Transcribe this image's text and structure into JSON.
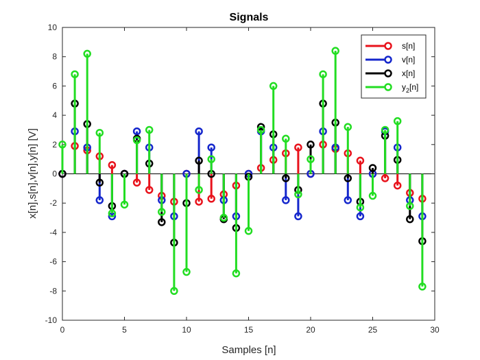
{
  "chart_data": {
    "type": "stem",
    "title": "Signals",
    "xlabel": "Samples [n]",
    "ylabel": "x[n],s[n],v[n],y[n] [V]",
    "xlim": [
      0,
      30
    ],
    "ylim": [
      -10,
      10
    ],
    "xticks": [
      0,
      5,
      10,
      15,
      20,
      25,
      30
    ],
    "yticks": [
      -10,
      -8,
      -6,
      -4,
      -2,
      0,
      2,
      4,
      6,
      8,
      10
    ],
    "grid": false,
    "legend_position": "top-right",
    "x": [
      0,
      1,
      2,
      3,
      4,
      5,
      6,
      7,
      8,
      9,
      10,
      11,
      12,
      13,
      14,
      15,
      16,
      17,
      18,
      19,
      20,
      21,
      22,
      23,
      24,
      25,
      26,
      27,
      28,
      29
    ],
    "series": [
      {
        "name": "s[n]",
        "legend": "s[n]",
        "color": "#e8121b",
        "values": [
          0,
          1.9,
          1.6,
          1.2,
          0.6,
          0,
          -0.6,
          -1.1,
          -1.5,
          -1.9,
          0,
          -1.9,
          -1.7,
          -1.4,
          -0.8,
          0,
          0.4,
          0.95,
          1.4,
          1.8,
          0,
          2.0,
          1.7,
          1.4,
          0.9,
          0,
          -0.3,
          -0.8,
          -1.3,
          -1.7
        ]
      },
      {
        "name": "v[n]",
        "legend": "v[n]",
        "color": "#1426cc",
        "values": [
          0,
          2.9,
          1.8,
          -1.8,
          -2.9,
          0,
          2.9,
          1.8,
          -1.8,
          -2.9,
          0,
          2.9,
          1.8,
          -1.8,
          -2.9,
          0,
          2.9,
          1.8,
          -1.8,
          -2.9,
          0,
          2.9,
          1.8,
          -1.8,
          -2.9,
          0,
          2.9,
          1.8,
          -1.8,
          -2.9
        ]
      },
      {
        "name": "x[n]",
        "legend": "x[n]",
        "color": "#000000",
        "values": [
          0,
          4.8,
          3.4,
          -0.6,
          -2.2,
          0,
          2.4,
          0.7,
          -3.3,
          -4.7,
          -2.0,
          0.9,
          0,
          -3.1,
          -3.7,
          -0.2,
          3.2,
          2.7,
          -0.3,
          -1.1,
          2.0,
          4.8,
          3.5,
          -0.3,
          -1.9,
          0.4,
          2.6,
          0.95,
          -3.1,
          -4.6
        ]
      },
      {
        "name": "y2[n]",
        "legend": "y",
        "legend_sub": "2",
        "legend_suffix": "[n]",
        "color": "#22dd22",
        "values": [
          2.0,
          6.8,
          8.2,
          2.8,
          -2.7,
          -2.1,
          2.3,
          3.0,
          -2.6,
          -8.0,
          -6.7,
          -1.1,
          1.0,
          -3.0,
          -6.8,
          -3.9,
          3.0,
          6.0,
          2.4,
          -1.4,
          1.0,
          6.8,
          8.4,
          3.2,
          -2.3,
          -1.5,
          3.0,
          3.6,
          -2.2,
          -7.7
        ]
      }
    ]
  }
}
